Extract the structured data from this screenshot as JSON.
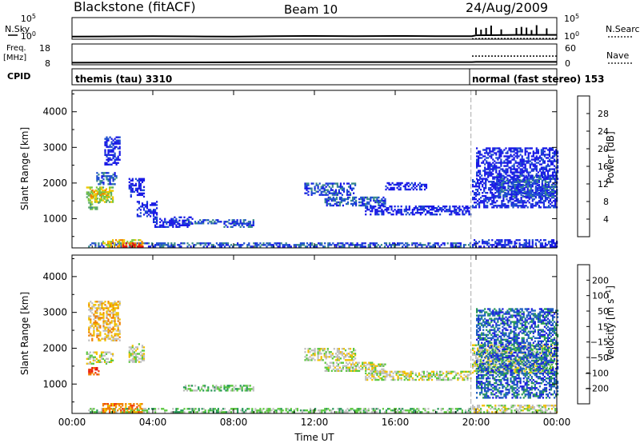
{
  "header": {
    "station": "Blackstone (fitACF)",
    "beam": "Beam 10",
    "date": "24/Aug/2009"
  },
  "noise_panel": {
    "left_label": "N.Sky",
    "right_label": "N.Search",
    "tick_top": "10^5",
    "tick_bottom": "10^0",
    "sky_points": [
      [
        0,
        0.12
      ],
      [
        2,
        0.13
      ],
      [
        4,
        0.14
      ],
      [
        6,
        0.13
      ],
      [
        8,
        0.12
      ],
      [
        10,
        0.14
      ],
      [
        12,
        0.15
      ],
      [
        14,
        0.14
      ],
      [
        16,
        0.15
      ],
      [
        18,
        0.14
      ],
      [
        19.8,
        0.14
      ],
      [
        20,
        0.18
      ],
      [
        22,
        0.2
      ],
      [
        24,
        0.2
      ]
    ],
    "search_points": [
      [
        19.8,
        0.02
      ],
      [
        20.2,
        0.03
      ],
      [
        22,
        0.03
      ],
      [
        24,
        0.03
      ]
    ]
  },
  "freq_panel": {
    "left_label_1": "Freq.",
    "left_label_2": "[MHz]",
    "right_label": "Nave",
    "left_ticks": [
      "18",
      "8"
    ],
    "right_ticks": [
      "60",
      "0"
    ],
    "freq_points": [
      [
        0,
        0.1
      ],
      [
        4,
        0.11
      ],
      [
        8,
        0.12
      ],
      [
        12,
        0.13
      ],
      [
        16,
        0.13
      ],
      [
        19.8,
        0.13
      ],
      [
        20,
        0.14
      ],
      [
        24,
        0.14
      ]
    ],
    "nave_points": [
      [
        19.8,
        0.42
      ],
      [
        20.2,
        0.42
      ],
      [
        24,
        0.42
      ]
    ]
  },
  "cpid_panel": {
    "label": "CPID",
    "segments": [
      {
        "start": 0,
        "end": 19.75,
        "text": "themis (tau) 3310"
      },
      {
        "start": 19.75,
        "end": 24,
        "text": "normal (fast stereo) 153"
      }
    ]
  },
  "chart_data": [
    {
      "type": "heatmap",
      "title": "Power",
      "ylabel": "Slant Range [km]",
      "xlabel": "Time UT",
      "x_unit": "hours UT",
      "xlim": [
        0,
        24
      ],
      "ylim": [
        180,
        4600
      ],
      "yticks": [
        1000,
        2000,
        3000,
        4000
      ],
      "xticks": [
        "00:00",
        "04:00",
        "08:00",
        "12:00",
        "16:00",
        "20:00",
        "00:00"
      ],
      "mode_change_hour": 19.75,
      "colorbar": {
        "label": "Power [dB]",
        "ticks": [
          "4",
          "8",
          "12",
          "16",
          "20",
          "24",
          "28"
        ],
        "colors": [
          "#1a1ae6",
          "#1f4fd0",
          "#3a8a8a",
          "#5aaa6a",
          "#7cc83c",
          "#f0c800",
          "#f08000",
          "#e81010"
        ]
      },
      "regions": [
        {
          "t0": 0.7,
          "t1": 2.0,
          "r0": 1450,
          "r1": 1900,
          "level": 4
        },
        {
          "t0": 0.9,
          "t1": 1.8,
          "r0": 1550,
          "r1": 1800,
          "level": 5
        },
        {
          "t0": 0.8,
          "t1": 1.3,
          "r0": 1250,
          "r1": 1450,
          "level": 3
        },
        {
          "t0": 1.2,
          "t1": 2.2,
          "r0": 1950,
          "r1": 2300,
          "level": 1
        },
        {
          "t0": 1.6,
          "t1": 2.4,
          "r0": 2500,
          "r1": 3300,
          "level": 0
        },
        {
          "t0": 2.8,
          "t1": 3.6,
          "r0": 1600,
          "r1": 2100,
          "level": 0
        },
        {
          "t0": 3.2,
          "t1": 4.2,
          "r0": 1050,
          "r1": 1500,
          "level": 0
        },
        {
          "t0": 4.0,
          "t1": 6.0,
          "r0": 750,
          "r1": 1050,
          "level": 0
        },
        {
          "t0": 5.5,
          "t1": 9.0,
          "r0": 850,
          "r1": 950,
          "level": 1
        },
        {
          "t0": 7.5,
          "t1": 9.0,
          "r0": 750,
          "r1": 850,
          "level": 1
        },
        {
          "t0": 11.5,
          "t1": 14.0,
          "r0": 1650,
          "r1": 2000,
          "level": 1
        },
        {
          "t0": 12.5,
          "t1": 15.5,
          "r0": 1350,
          "r1": 1600,
          "level": 1
        },
        {
          "t0": 14.5,
          "t1": 19.7,
          "r0": 1100,
          "r1": 1350,
          "level": 0
        },
        {
          "t0": 15.5,
          "t1": 17.5,
          "r0": 1800,
          "r1": 2000,
          "level": 0
        },
        {
          "t0": 19.8,
          "t1": 24.0,
          "r0": 1300,
          "r1": 2100,
          "level": 0
        },
        {
          "t0": 21.0,
          "t1": 24.0,
          "r0": 1600,
          "r1": 2200,
          "level": 1
        },
        {
          "t0": 20.0,
          "t1": 24.0,
          "r0": 2100,
          "r1": 3000,
          "level": 0
        },
        {
          "t0": 0.8,
          "t1": 19.7,
          "r0": 200,
          "r1": 330,
          "level": 1
        },
        {
          "t0": 1.5,
          "t1": 3.5,
          "r0": 200,
          "r1": 400,
          "level": 5
        },
        {
          "t0": 2.5,
          "t1": 3.5,
          "r0": 200,
          "r1": 300,
          "level": 7
        },
        {
          "t0": 19.8,
          "t1": 24.0,
          "r0": 200,
          "r1": 400,
          "level": 0
        }
      ]
    },
    {
      "type": "heatmap",
      "title": "Velocity",
      "ylabel": "Slant Range [km]",
      "xlabel": "Time UT",
      "x_unit": "hours UT",
      "xlim": [
        0,
        24
      ],
      "ylim": [
        180,
        4600
      ],
      "yticks": [
        1000,
        2000,
        3000,
        4000
      ],
      "xticks": [
        "00:00",
        "04:00",
        "08:00",
        "12:00",
        "16:00",
        "20:00",
        "00:00"
      ],
      "mode_change_hour": 19.75,
      "colorbar": {
        "label": "Velocity [m s^-1]",
        "ticks": [
          "200",
          "100",
          "50",
          "15",
          "−15",
          "−50",
          "−100",
          "−200"
        ],
        "colors": [
          "#1c1ce0",
          "#1f60c0",
          "#2a9a5a",
          "#5cc840",
          "#c0c0c0",
          "#f0c000",
          "#f08000",
          "#f04010",
          "#e81010"
        ]
      },
      "regions": [
        {
          "t0": 0.7,
          "t1": 2.0,
          "r0": 1550,
          "r1": 1900,
          "level": 4
        },
        {
          "t0": 0.8,
          "t1": 1.3,
          "r0": 1250,
          "r1": 1450,
          "level": 7
        },
        {
          "t0": 0.8,
          "t1": 2.4,
          "r0": 2200,
          "r1": 3300,
          "level": 5
        },
        {
          "t0": 2.8,
          "t1": 3.6,
          "r0": 1600,
          "r1": 2100,
          "level": 4
        },
        {
          "t0": 5.5,
          "t1": 9.0,
          "r0": 800,
          "r1": 950,
          "level": 3
        },
        {
          "t0": 11.5,
          "t1": 14.0,
          "r0": 1650,
          "r1": 2000,
          "level": 4
        },
        {
          "t0": 12.5,
          "t1": 15.5,
          "r0": 1350,
          "r1": 1600,
          "level": 4
        },
        {
          "t0": 14.5,
          "t1": 19.7,
          "r0": 1100,
          "r1": 1350,
          "level": 4
        },
        {
          "t0": 19.8,
          "t1": 24.0,
          "r0": 1300,
          "r1": 2100,
          "level": 4
        },
        {
          "t0": 20.0,
          "t1": 24.0,
          "r0": 600,
          "r1": 3100,
          "level": 1
        },
        {
          "t0": 0.8,
          "t1": 19.7,
          "r0": 200,
          "r1": 330,
          "level": 3
        },
        {
          "t0": 1.5,
          "t1": 3.5,
          "r0": 200,
          "r1": 450,
          "level": 6
        },
        {
          "t0": 19.8,
          "t1": 24.0,
          "r0": 200,
          "r1": 400,
          "level": 4
        }
      ]
    }
  ]
}
